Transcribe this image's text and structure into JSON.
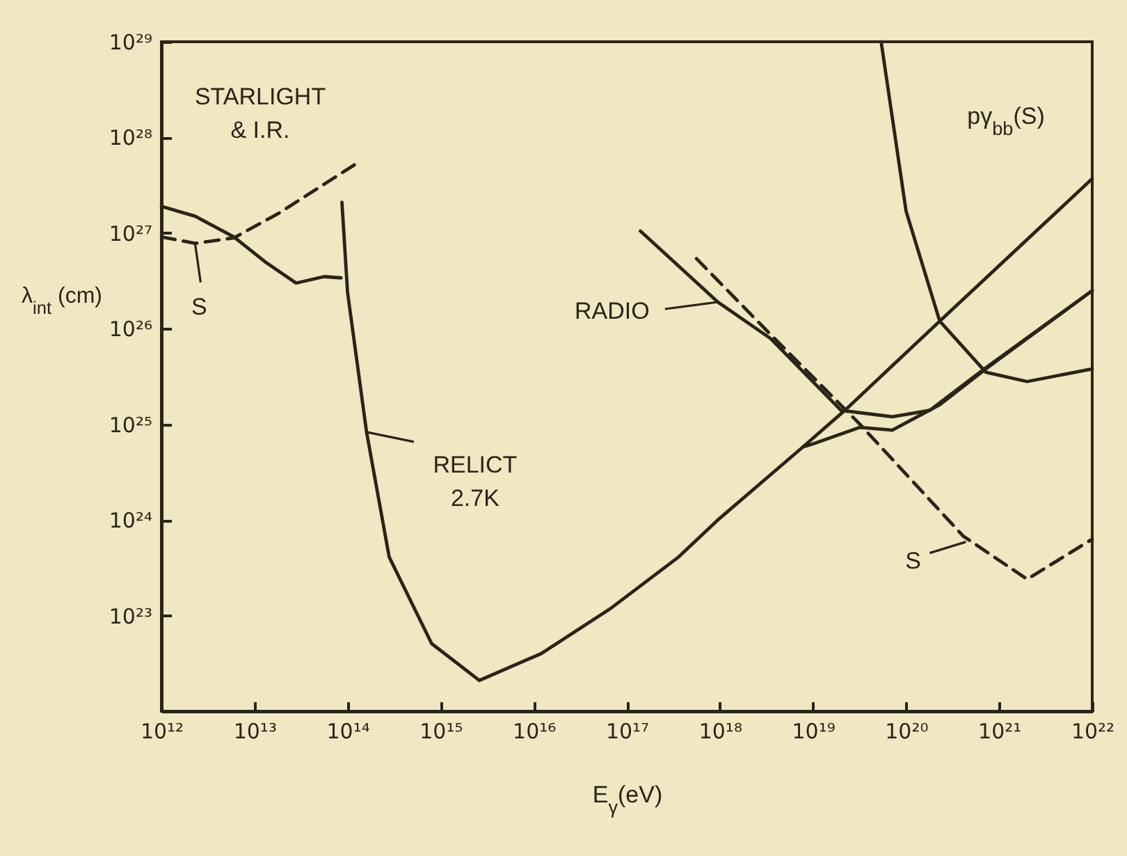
{
  "chart_data": {
    "type": "line",
    "xlabel": "E$_{γ}$(eV)",
    "ylabel": "λ$_{int}$ (cm)",
    "log": "xy",
    "xlim": [
      1000000000000.0,
      1e+22
    ],
    "ylim": [
      1e+22,
      1e+29
    ],
    "xticks": [
      {
        "value": 1000000000000.0,
        "label": "10¹²"
      },
      {
        "value": 10000000000000.0,
        "label": "10¹³"
      },
      {
        "value": 100000000000000.0,
        "label": "10¹⁴"
      },
      {
        "value": 1000000000000000.0,
        "label": "10¹⁵"
      },
      {
        "value": 1e+16,
        "label": "10¹⁶"
      },
      {
        "value": 1e+17,
        "label": "10¹⁷"
      },
      {
        "value": 1e+18,
        "label": "10¹⁸"
      },
      {
        "value": 1e+19,
        "label": "10¹⁹"
      },
      {
        "value": 1e+20,
        "label": "10²⁰"
      },
      {
        "value": 1e+21,
        "label": "10²¹"
      },
      {
        "value": 1e+22,
        "label": "10²²"
      }
    ],
    "yticks": [
      {
        "value": 1e+22,
        "label": null
      },
      {
        "value": 1e+23,
        "label": "10²³"
      },
      {
        "value": 1e+24,
        "label": "10²⁴"
      },
      {
        "value": 1e+25,
        "label": "10²⁵"
      },
      {
        "value": 1e+26,
        "label": "10²⁶"
      },
      {
        "value": 1e+27,
        "label": "10²⁷"
      },
      {
        "value": 1e+28,
        "label": "10²⁸"
      },
      {
        "value": 1e+29,
        "label": "10²⁹"
      }
    ],
    "series": [
      {
        "color": "#2b2418",
        "x": [
          1000000000000.0,
          2300000000000.0,
          6000000000000.0,
          13000000000000.0,
          28000000000000.0,
          56000000000000.0,
          85000000000000.0
        ],
        "values": [
          1.9e+27,
          1.5e+27,
          9.1e+26,
          5e+26,
          3e+26,
          3.5e+26,
          3.4e+26
        ]
      },
      {
        "color": "#2b2418",
        "line_style": "dashed",
        "x": [
          1000000000000.0,
          2300000000000.0,
          6000000000000.0,
          18000000000000.0,
          120000000000000.0
        ],
        "values": [
          9.1e+26,
          7.8e+26,
          8.9e+26,
          1.6e+27,
          5.2e+27
        ]
      },
      {
        "color": "#2b2418",
        "x": [
          87000000000000.0,
          100000000000000.0,
          160000000000000.0,
          280000000000000.0,
          800000000000000.0,
          2600000000000000.0,
          1.2e+16,
          6.8e+16,
          3.6e+17,
          9.5e+17,
          7.8e+18,
          2.2e+19,
          2.3e+20,
          1e+22
        ],
        "values": [
          2.1e+27,
          2.4e+26,
          8.3e+24,
          4.1e+23,
          5.1e+22,
          2.1e+22,
          4e+22,
          1.2e+23,
          4.1e+23,
          1e+24,
          5.8e+24,
          1.4e+25,
          1.2e+26,
          3.7e+27
        ]
      },
      {
        "color": "#2b2418",
        "x": [
          7.8e+18,
          9.8e+18,
          3.2e+19,
          7.1e+19,
          2.3e+20,
          7.2e+20,
          1e+22
        ],
        "values": [
          5.8e+24,
          6.2e+24,
          9.3e+24,
          8.7e+24,
          1.6e+25,
          3.8e+25,
          2.5e+26
        ]
      },
      {
        "color": "#2b2418",
        "x": [
          1.4e+17,
          9.5e+17,
          3.5e+18,
          2e+19,
          7.1e+19,
          1.8e+20,
          7.2e+20,
          1e+22
        ],
        "values": [
          1.05e+27,
          1.9e+26,
          7.9e+25,
          1.4e+25,
          1.2e+25,
          1.4e+25,
          3.9e+25,
          2.5e+26
        ]
      },
      {
        "color": "#2b2418",
        "line_style": "dashed",
        "x": [
          5.6e+17,
          3.5e+18,
          3.2e+19,
          4.1e+20,
          2e+21,
          1e+22
        ],
        "values": [
          5.4e+26,
          8.7e+25,
          1e+25,
          6.8e+23,
          2.4e+23,
          6.3e+23
        ]
      },
      {
        "color": "#2b2418",
        "x": [
          5.4e+19,
          1e+20,
          2.3e+20,
          7.2e+20,
          2e+21,
          1e+22
        ],
        "values": [
          1e+29,
          1.7e+27,
          1.2e+26,
          3.5e+25,
          2.8e+25,
          3.8e+25
        ]
      }
    ],
    "annotations": [
      "STARLIGHT\n& I.R.",
      {
        "text": "S",
        "x": 2300000000000.0,
        "y": 7.8e+26
      },
      {
        "text": "RELICT\n2.7K",
        "x": 160000000000000.0,
        "y": 8.3e+24
      },
      {
        "text": "RADIO",
        "x": 9.5e+17,
        "y": 1.9e+26
      },
      {
        "text": "S",
        "x": 4.4e+20,
        "y": 5.9e+23
      },
      "pγ$_{bb}$(S)"
    ]
  }
}
